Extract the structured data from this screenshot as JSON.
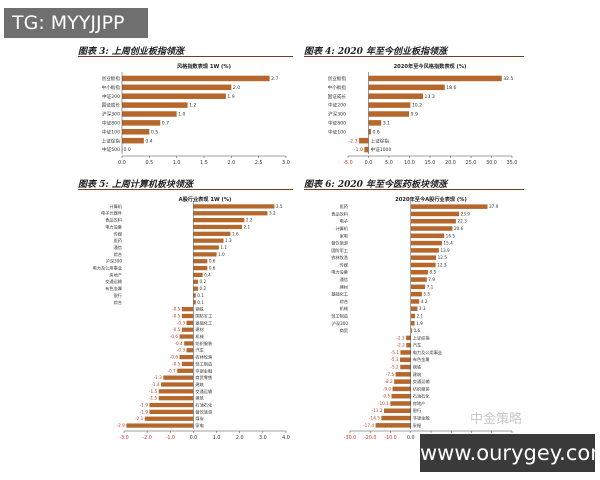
{
  "watermark_top": "TG: MYYJJPP",
  "watermark_bottom": "www.ourygey.com",
  "watermark_logo": "中金策略",
  "colors": {
    "bar": "#b5672c",
    "neg_label": "#c0392b",
    "axis": "#444444"
  },
  "chart_data": [
    {
      "type": "bar",
      "orientation": "horizontal",
      "panel_title": "图表 3: 上周创业板指领涨",
      "title": "风格指数表现 1W (%)",
      "categories": [
        "创业板指",
        "中小板指",
        "中证200",
        "国证成长",
        "沪深300",
        "中证800",
        "中证100",
        "上证综指",
        "中证500"
      ],
      "values": [
        2.7,
        2.0,
        1.9,
        1.2,
        1.0,
        0.7,
        0.5,
        0.4,
        0.0
      ],
      "value_labels": [
        "2.7",
        "2.0",
        "1.9",
        "1.2",
        "1.0",
        "0.7",
        "0.5",
        "0.4",
        "0.0"
      ],
      "xlim": [
        0,
        3.0
      ],
      "xticks": [
        0.0,
        0.5,
        1.0,
        1.5,
        2.0,
        2.5,
        3.0
      ],
      "xtick_labels": [
        "0.0",
        "0.5",
        "1.0",
        "1.5",
        "2.0",
        "2.5",
        "3.0"
      ],
      "legend": "none",
      "grid": false
    },
    {
      "type": "bar",
      "orientation": "horizontal",
      "panel_title": "图表 4: 2020 年至今创业板指领涨",
      "title": "2020年至今风格指数表现 (%)",
      "categories": [
        "创业板指",
        "中小板指",
        "国证成长",
        "中证200",
        "沪深300",
        "中证800",
        "中证100",
        "上证综指",
        "中证1000"
      ],
      "values": [
        32.5,
        18.6,
        13.3,
        10.2,
        9.9,
        3.1,
        0.6,
        -2.3,
        -1.0
      ],
      "value_labels": [
        "32.5",
        "18.6",
        "13.3",
        "10.2",
        "9.9",
        "3.1",
        "0.6",
        "-2.3",
        "-1.0"
      ],
      "xlim": [
        -5,
        35
      ],
      "xticks": [
        -5,
        0,
        5,
        10,
        15,
        20,
        25,
        30,
        35
      ],
      "xtick_labels": [
        "-5.0",
        "0.0",
        "5.0",
        "10.0",
        "15.0",
        "20.0",
        "25.0",
        "30.0",
        "35.0"
      ],
      "legend": "none",
      "grid": false
    },
    {
      "type": "bar",
      "orientation": "horizontal",
      "panel_title": "图表 5: 上周计算机板块领涨",
      "title": "A股行业表现 1W (%)",
      "categories": [
        "计算机",
        "电子元器件",
        "食品饮料",
        "电力设备",
        "传媒",
        "医药",
        "通信",
        "综合",
        "沪深300",
        "电力及公用事业",
        "房地产",
        "交通运输",
        "有色金属",
        "银行",
        "综合",
        "钢铁",
        "国防军工",
        "基础化工",
        "建材",
        "机械",
        "纺织服装",
        "汽车",
        "农林牧渔",
        "轻工制造",
        "非银金融",
        "商贸零售",
        "建筑",
        "交通运输",
        "建筑",
        "石油石化",
        "餐饮旅游",
        "煤炭",
        "家电"
      ],
      "values": [
        3.5,
        3.2,
        2.2,
        2.1,
        1.6,
        1.3,
        1.1,
        1.0,
        0.6,
        0.6,
        0.4,
        0.2,
        0.2,
        0.1,
        0.1,
        -0.5,
        -0.5,
        -0.3,
        -0.5,
        -0.6,
        -0.4,
        -0.3,
        -0.6,
        -0.5,
        -0.7,
        -1.3,
        -1.4,
        -1.5,
        -1.5,
        -1.9,
        -1.9,
        -2.1,
        -2.9
      ],
      "value_labels": [
        "3.5",
        "3.2",
        "2.2",
        "2.1",
        "1.6",
        "1.3",
        "1.1",
        "1.0",
        "0.6",
        "0.6",
        "0.4",
        "0.2",
        "0.2",
        "0.1",
        "0.1",
        "-0.5",
        "-0.5",
        "-0.3",
        "-0.5",
        "-0.6",
        "-0.4",
        "-0.3",
        "-0.6",
        "-0.5",
        "-0.7",
        "-1.3",
        "-1.4",
        "-1.5",
        "-1.5",
        "-1.9",
        "-1.9",
        "-2.1",
        "-2.9"
      ],
      "xlim": [
        -3.0,
        4.0
      ],
      "xticks": [
        -3,
        -2,
        -1,
        0,
        1,
        2,
        3,
        4
      ],
      "xtick_labels": [
        "-3.0",
        "-2.0",
        "-1.0",
        "0.0",
        "1.0",
        "2.0",
        "3.0",
        "4.0"
      ],
      "legend": "none",
      "grid": false
    },
    {
      "type": "bar",
      "orientation": "horizontal",
      "panel_title": "图表 6: 2020 年至今医药板块领涨",
      "title": "2020年至今A股行业表现 (%)",
      "categories": [
        "医药",
        "食品饮料",
        "电子",
        "计算机",
        "家电",
        "餐饮旅游",
        "国防军工",
        "农林牧渔",
        "传媒",
        "电力设备",
        "通信",
        "建材",
        "基础化工",
        "综合",
        "机械",
        "轻工制造",
        "沪深300",
        "商贸",
        "上证综指",
        "汽车",
        "电力及公用事业",
        "有色金属",
        "钢铁",
        "建筑",
        "交通运输",
        "纺织服装",
        "石油石化",
        "房地产",
        "银行",
        "非银金融",
        "采掘"
      ],
      "values": [
        37.9,
        23.9,
        22.3,
        20.6,
        16.5,
        15.4,
        13.9,
        12.5,
        12.3,
        8.5,
        7.9,
        7.1,
        5.5,
        4.2,
        3.3,
        2.1,
        1.9,
        0.6,
        -2.3,
        -2.2,
        -5.1,
        -5.3,
        -5.2,
        -7.5,
        -8.2,
        -9.0,
        -9.5,
        -10.1,
        -13.2,
        -14.5,
        -17.4
      ],
      "value_labels": [
        "37.9",
        "23.9",
        "22.3",
        "20.6",
        "16.5",
        "15.4",
        "13.9",
        "12.5",
        "12.3",
        "8.5",
        "7.9",
        "7.1",
        "5.5",
        "4.2",
        "3.3",
        "2.1",
        "1.9",
        "0.6",
        "-2.3",
        "-2.2",
        "-5.1",
        "-5.3",
        "-5.2",
        "-7.5",
        "-8.2",
        "-9.0",
        "-9.5",
        "-10.1",
        "-13.2",
        "-14.5",
        "-17.4"
      ],
      "xlim": [
        -30,
        50
      ],
      "xticks": [
        -30,
        -20,
        -10,
        0,
        10,
        20,
        30,
        40,
        50
      ],
      "xtick_labels": [
        "-30.0",
        "-20.0",
        "-10.0",
        "0.0",
        "10.0",
        "20.0",
        "30.0",
        "40.0",
        "50.0"
      ],
      "legend": "none",
      "grid": false
    }
  ]
}
